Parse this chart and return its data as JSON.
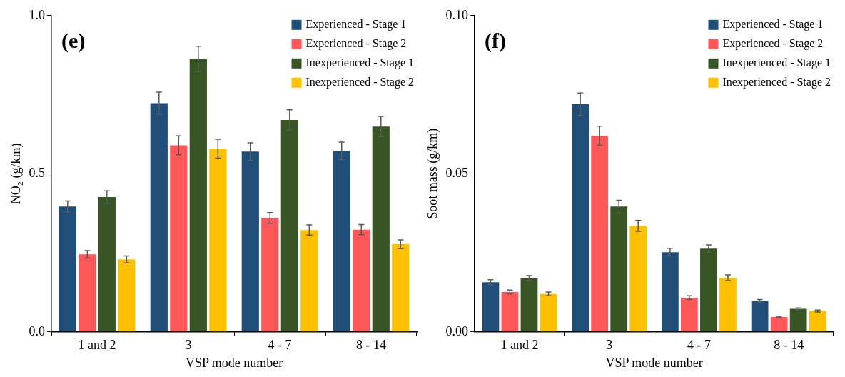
{
  "chart_data": [
    {
      "type": "bar",
      "annotations": [
        "(e)"
      ],
      "xlabel": "VSP mode number",
      "ylabel": "NO₂ (g/km)",
      "categories": [
        "1 and 2",
        "3",
        "4 - 7",
        "8 - 14"
      ],
      "series": [
        {
          "name": "Experienced - Stage 1",
          "color": "#1f4e79",
          "values": [
            0.396,
            0.723,
            0.57,
            0.572
          ],
          "errors": [
            0.018,
            0.035,
            0.028,
            0.028
          ]
        },
        {
          "name": "Experienced - Stage 2",
          "color": "#ff5757",
          "values": [
            0.245,
            0.59,
            0.36,
            0.323
          ],
          "errors": [
            0.012,
            0.03,
            0.017,
            0.016
          ]
        },
        {
          "name": "Inexperienced - Stage 1",
          "color": "#375623",
          "values": [
            0.426,
            0.863,
            0.67,
            0.649
          ],
          "errors": [
            0.02,
            0.04,
            0.032,
            0.032
          ]
        },
        {
          "name": "Inexperienced - Stage 2",
          "color": "#ffc000",
          "values": [
            0.229,
            0.579,
            0.322,
            0.277
          ],
          "errors": [
            0.011,
            0.03,
            0.016,
            0.014
          ]
        }
      ],
      "ylim": [
        0,
        1
      ],
      "yticks": [
        {
          "value": 0,
          "label": "0.0"
        },
        {
          "value": 0.5,
          "label": "0.5"
        },
        {
          "value": 1,
          "label": "1.0"
        }
      ],
      "grid": false,
      "legend": "top right"
    },
    {
      "type": "bar",
      "annotations": [
        "(f)"
      ],
      "xlabel": "VSP mode number",
      "ylabel": "Soot mass (g/km)",
      "categories": [
        "1 and 2",
        "3",
        "4 - 7",
        "8 - 14"
      ],
      "series": [
        {
          "name": "Experienced - Stage 1",
          "color": "#1f4e79",
          "values": [
            0.0157,
            0.072,
            0.0252,
            0.0098
          ],
          "errors": [
            0.0008,
            0.0035,
            0.0012,
            0.0004
          ]
        },
        {
          "name": "Experienced - Stage 2",
          "color": "#ff5757",
          "values": [
            0.0126,
            0.062,
            0.0108,
            0.0047
          ],
          "errors": [
            0.0006,
            0.003,
            0.0006,
            0.0002
          ]
        },
        {
          "name": "Inexperienced - Stage 1",
          "color": "#375623",
          "values": [
            0.017,
            0.0396,
            0.0263,
            0.0073
          ],
          "errors": [
            0.0008,
            0.002,
            0.0012,
            0.0003
          ]
        },
        {
          "name": "Inexperienced - Stage 2",
          "color": "#ffc000",
          "values": [
            0.012,
            0.0335,
            0.0171,
            0.0066
          ],
          "errors": [
            0.0006,
            0.0017,
            0.0009,
            0.0003
          ]
        }
      ],
      "ylim": [
        0,
        0.1
      ],
      "yticks": [
        {
          "value": 0,
          "label": "0.00"
        },
        {
          "value": 0.05,
          "label": "0.05"
        },
        {
          "value": 0.1,
          "label": "0.10"
        }
      ],
      "grid": false,
      "legend": "top right"
    }
  ]
}
